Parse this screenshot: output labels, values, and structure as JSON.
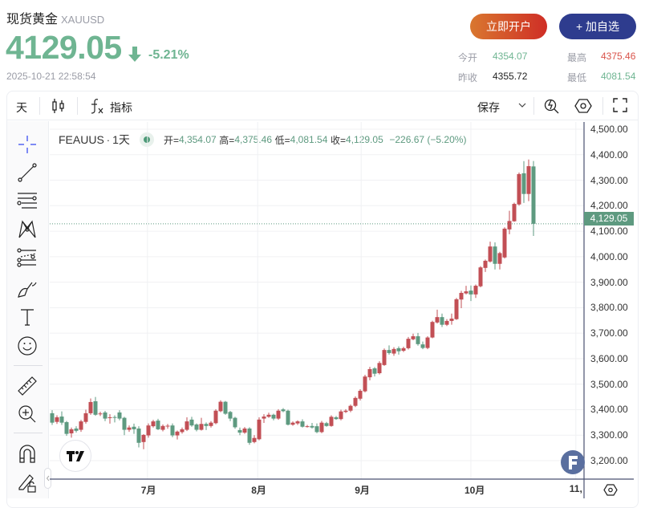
{
  "header": {
    "name": "现货黄金",
    "symbol": "XAUUSD",
    "price": "4129.05",
    "change_pct": "-5.21%",
    "timestamp": "2025-10-21 22:58:54",
    "direction_icon": "arrow-down-icon"
  },
  "buttons": {
    "open_account": "立即开户",
    "add_watchlist": "+ 加自选"
  },
  "stats": {
    "open_label": "今开",
    "open": "4354.07",
    "high_label": "最高",
    "high": "4375.46",
    "prev_close_label": "昨收",
    "prev_close": "4355.72",
    "low_label": "最低",
    "low": "4081.54"
  },
  "toolbar": {
    "interval": "天",
    "indicators": "指标",
    "save": "保存"
  },
  "legend": {
    "symbol": "FEAUUS",
    "sep": "·",
    "interval": "1天",
    "o_label": "开=",
    "o": "4,354.07",
    "h_label": "高=",
    "h": "4,375.46",
    "l_label": "低=",
    "l": "4,081.54",
    "c_label": "收=",
    "c": "4,129.05",
    "change": "−226.67 (−5.20%)"
  },
  "colors": {
    "up": "#c24f55",
    "down": "#5e9a80",
    "accent": "#2e3c8e"
  },
  "chart_data": {
    "type": "candlestick",
    "ylim": [
      3160,
      4530
    ],
    "yticks": [
      "4,500.00",
      "4,400.00",
      "4,300.00",
      "4,200.00",
      "4,100.00",
      "4,000.00",
      "3,900.00",
      "3,800.00",
      "3,700.00",
      "3,600.00",
      "3,500.00",
      "3,400.00",
      "3,300.00",
      "3,200.00"
    ],
    "ytick_values": [
      4500,
      4400,
      4300,
      4200,
      4100,
      4000,
      3900,
      3800,
      3700,
      3600,
      3500,
      3400,
      3300,
      3200
    ],
    "xticks": [
      {
        "label": "7月",
        "bar": 19.8
      },
      {
        "label": "8月",
        "bar": 42.7
      },
      {
        "label": "9月",
        "bar": 64.2
      },
      {
        "label": "10月",
        "bar": 87
      },
      {
        "label": "11,",
        "bar": 108.8
      }
    ],
    "last_price": 4129.05,
    "last_price_label": "4,129.05",
    "ohlc": [
      [
        3386,
        3398,
        3340,
        3349
      ],
      [
        3352,
        3378,
        3344,
        3370
      ],
      [
        3373,
        3393,
        3340,
        3349
      ],
      [
        3351,
        3356,
        3297,
        3305
      ],
      [
        3307,
        3330,
        3290,
        3323
      ],
      [
        3326,
        3335,
        3310,
        3317
      ],
      [
        3321,
        3360,
        3313,
        3354
      ],
      [
        3352,
        3400,
        3345,
        3386
      ],
      [
        3386,
        3444,
        3380,
        3430
      ],
      [
        3433,
        3450,
        3376,
        3380
      ],
      [
        3382,
        3392,
        3375,
        3385
      ],
      [
        3389,
        3395,
        3355,
        3365
      ],
      [
        3368,
        3382,
        3345,
        3370
      ],
      [
        3371,
        3378,
        3350,
        3369
      ],
      [
        3389,
        3398,
        3358,
        3365
      ],
      [
        3368,
        3372,
        3300,
        3321
      ],
      [
        3321,
        3338,
        3313,
        3330
      ],
      [
        3333,
        3345,
        3305,
        3323
      ],
      [
        3326,
        3335,
        3252,
        3270
      ],
      [
        3273,
        3304,
        3245,
        3301
      ],
      [
        3299,
        3346,
        3290,
        3338
      ],
      [
        3335,
        3360,
        3330,
        3354
      ],
      [
        3357,
        3364,
        3320,
        3323
      ],
      [
        3321,
        3342,
        3315,
        3336
      ],
      [
        3336,
        3344,
        3325,
        3337
      ],
      [
        3338,
        3346,
        3292,
        3299
      ],
      [
        3299,
        3318,
        3283,
        3314
      ],
      [
        3312,
        3330,
        3306,
        3323
      ],
      [
        3321,
        3370,
        3316,
        3354
      ],
      [
        3361,
        3372,
        3333,
        3338
      ],
      [
        3342,
        3346,
        3315,
        3321
      ],
      [
        3321,
        3368,
        3318,
        3344
      ],
      [
        3344,
        3350,
        3320,
        3336
      ],
      [
        3336,
        3355,
        3330,
        3349
      ],
      [
        3347,
        3402,
        3343,
        3396
      ],
      [
        3394,
        3437,
        3390,
        3431
      ],
      [
        3431,
        3434,
        3380,
        3384
      ],
      [
        3391,
        3395,
        3355,
        3365
      ],
      [
        3368,
        3372,
        3325,
        3331
      ],
      [
        3320,
        3330,
        3300,
        3310
      ],
      [
        3310,
        3332,
        3305,
        3326
      ],
      [
        3326,
        3331,
        3262,
        3270
      ],
      [
        3273,
        3300,
        3268,
        3289
      ],
      [
        3284,
        3370,
        3280,
        3361
      ],
      [
        3365,
        3382,
        3348,
        3373
      ],
      [
        3372,
        3388,
        3368,
        3380
      ],
      [
        3380,
        3384,
        3358,
        3365
      ],
      [
        3365,
        3402,
        3360,
        3396
      ],
      [
        3401,
        3406,
        3390,
        3394
      ],
      [
        3396,
        3400,
        3338,
        3341
      ],
      [
        3341,
        3354,
        3337,
        3349
      ],
      [
        3346,
        3358,
        3340,
        3354
      ],
      [
        3354,
        3362,
        3330,
        3333
      ],
      [
        3335,
        3340,
        3330,
        3335
      ],
      [
        3336,
        3348,
        3326,
        3330
      ],
      [
        3335,
        3346,
        3308,
        3312
      ],
      [
        3312,
        3356,
        3308,
        3349
      ],
      [
        3347,
        3352,
        3333,
        3336
      ],
      [
        3336,
        3378,
        3333,
        3372
      ],
      [
        3370,
        3375,
        3360,
        3363
      ],
      [
        3363,
        3400,
        3358,
        3393
      ],
      [
        3391,
        3402,
        3387,
        3396
      ],
      [
        3396,
        3420,
        3390,
        3415
      ],
      [
        3415,
        3452,
        3410,
        3446
      ],
      [
        3443,
        3480,
        3436,
        3474
      ],
      [
        3472,
        3537,
        3468,
        3530
      ],
      [
        3527,
        3568,
        3515,
        3559
      ],
      [
        3562,
        3567,
        3530,
        3541
      ],
      [
        3543,
        3590,
        3538,
        3583
      ],
      [
        3575,
        3640,
        3572,
        3634
      ],
      [
        3634,
        3652,
        3616,
        3622
      ],
      [
        3620,
        3645,
        3611,
        3638
      ],
      [
        3641,
        3648,
        3616,
        3629
      ],
      [
        3631,
        3647,
        3626,
        3641
      ],
      [
        3641,
        3685,
        3636,
        3678
      ],
      [
        3676,
        3698,
        3672,
        3688
      ],
      [
        3688,
        3701,
        3651,
        3657
      ],
      [
        3656,
        3667,
        3637,
        3642
      ],
      [
        3642,
        3688,
        3637,
        3683
      ],
      [
        3683,
        3749,
        3680,
        3744
      ],
      [
        3742,
        3792,
        3738,
        3763
      ],
      [
        3763,
        3777,
        3724,
        3733
      ],
      [
        3733,
        3755,
        3728,
        3748
      ],
      [
        3748,
        3777,
        3733,
        3757
      ],
      [
        3755,
        3838,
        3752,
        3833
      ],
      [
        3832,
        3866,
        3798,
        3858
      ],
      [
        3856,
        3886,
        3852,
        3864
      ],
      [
        3867,
        3887,
        3826,
        3852
      ],
      [
        3852,
        3891,
        3838,
        3886
      ],
      [
        3884,
        3963,
        3880,
        3958
      ],
      [
        3956,
        3989,
        3940,
        3984
      ],
      [
        3981,
        4059,
        3977,
        4040
      ],
      [
        4040,
        4056,
        3950,
        3972
      ],
      [
        3972,
        4019,
        3950,
        4014
      ],
      [
        3997,
        4115,
        3993,
        4110
      ],
      [
        4107,
        4180,
        4088,
        4140
      ],
      [
        4139,
        4212,
        4137,
        4207
      ],
      [
        4205,
        4330,
        4200,
        4324
      ],
      [
        4327,
        4375,
        4211,
        4246
      ],
      [
        4246,
        4381,
        4218,
        4355
      ],
      [
        4354.07,
        4375.46,
        4081.54,
        4129.05
      ]
    ]
  }
}
